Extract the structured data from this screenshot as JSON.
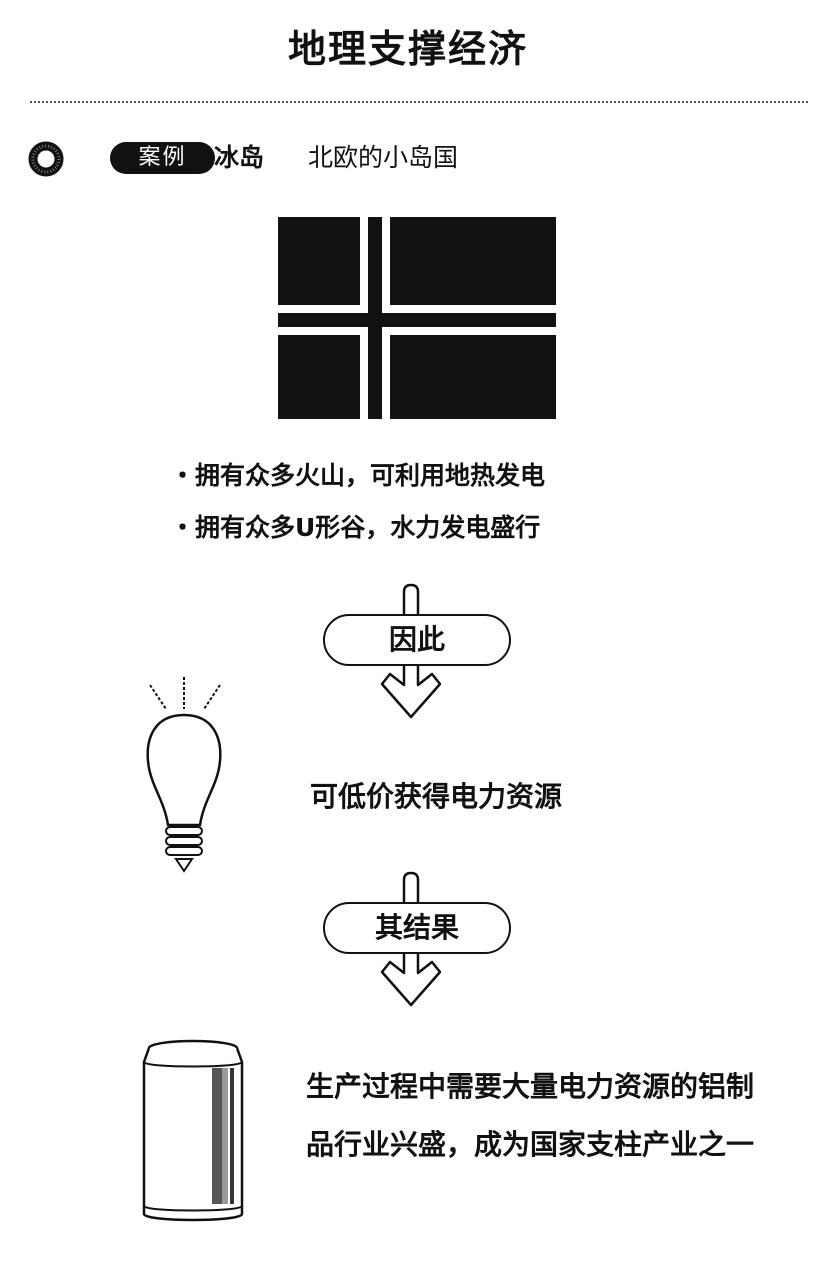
{
  "page": {
    "title": "地理支撑经济"
  },
  "case": {
    "badge_label": "案例",
    "country": "冰岛",
    "description": "北欧的小岛国"
  },
  "facts": [
    "・拥有众多火山，可利用地热发电",
    "・拥有众多U形谷，水力发电盛行"
  ],
  "flow": {
    "step_1_label": "因此",
    "step_1_result": "可低价获得电力资源",
    "step_2_label": "其结果",
    "step_2_result": "生产过程中需要大量电力资源的铝制品行业兴盛，成为国家支柱产业之一"
  },
  "colors": {
    "ink": "#111111",
    "paper": "#ffffff"
  },
  "icons": [
    "ring-icon",
    "flag-icon",
    "light-bulb-icon",
    "aluminum-can-icon",
    "down-arrow-icon"
  ]
}
